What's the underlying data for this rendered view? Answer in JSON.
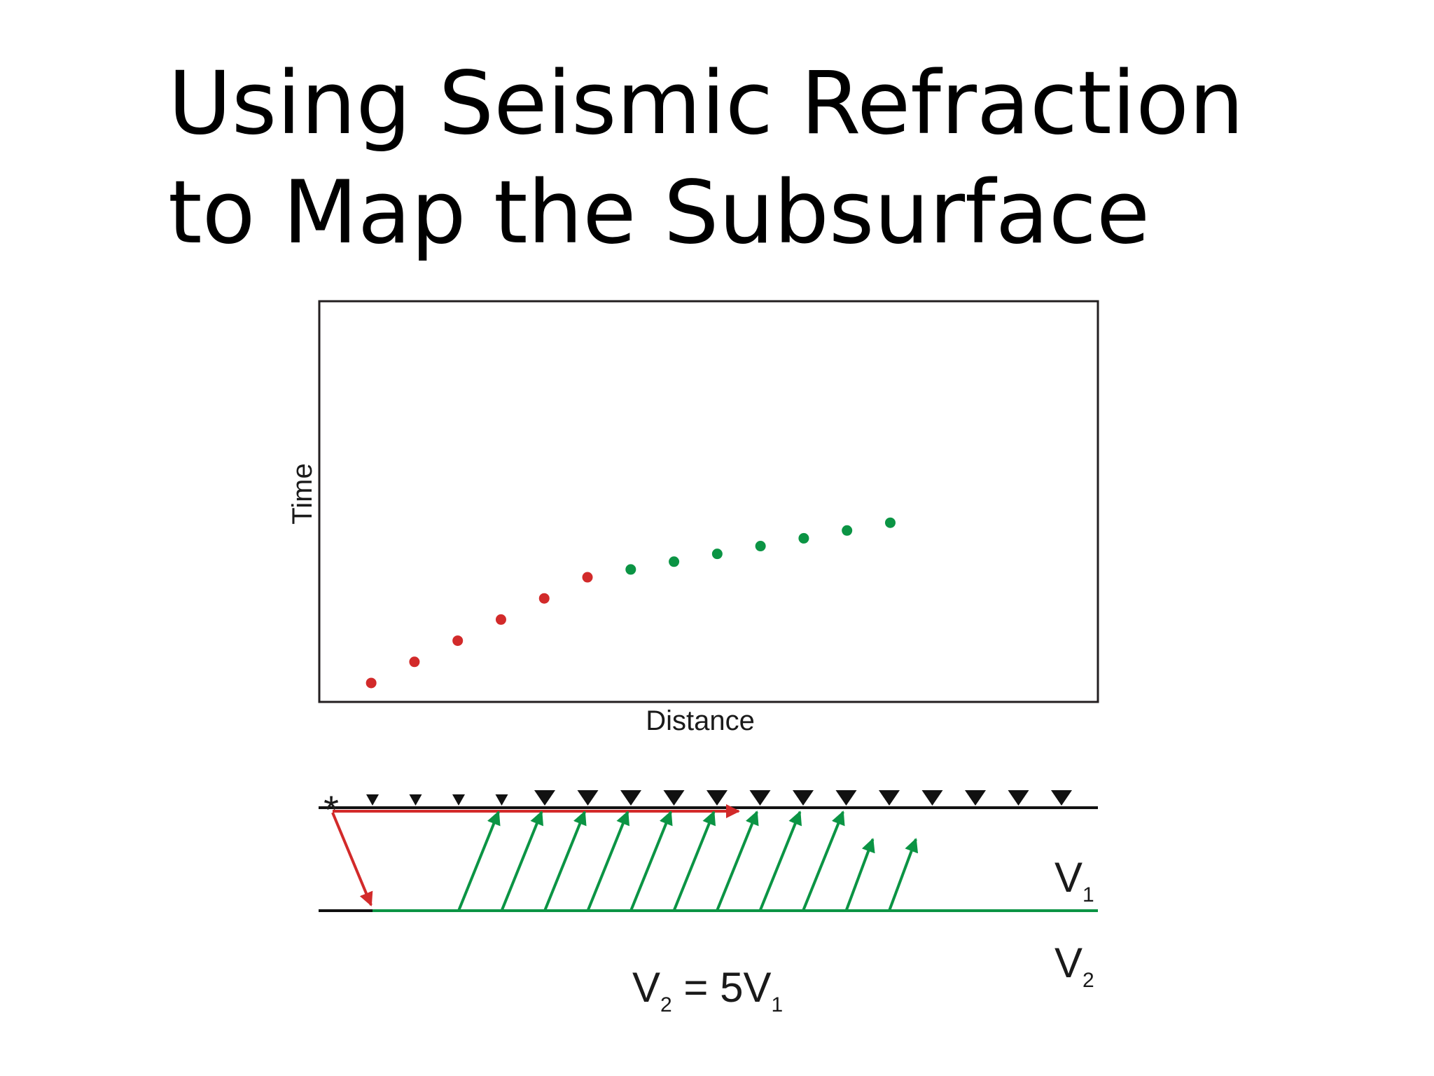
{
  "slide": {
    "title_line1": "Using Seismic Refraction",
    "title_line2": "to Map the Subsurface"
  },
  "colors": {
    "direct": "#d22a2a",
    "refracted": "#0b9444",
    "frame": "#231f20",
    "geophone": "#111111"
  },
  "chart_data": {
    "type": "scatter",
    "xlabel": "Distance",
    "ylabel": "Time",
    "xlim": [
      0,
      18
    ],
    "ylim": [
      0,
      18
    ],
    "grid": false,
    "legend": "none",
    "series": [
      {
        "color": "#d22a2a",
        "points": [
          [
            1.2,
            0.85
          ],
          [
            2.2,
            1.8
          ],
          [
            3.2,
            2.75
          ],
          [
            4.2,
            3.7
          ],
          [
            5.2,
            4.65
          ],
          [
            6.2,
            5.6
          ]
        ]
      },
      {
        "color": "#0b9444",
        "points": [
          [
            7.2,
            5.95
          ],
          [
            8.2,
            6.3
          ],
          [
            9.2,
            6.65
          ],
          [
            10.2,
            7.0
          ],
          [
            11.2,
            7.35
          ],
          [
            12.2,
            7.7
          ],
          [
            13.2,
            8.05
          ]
        ]
      }
    ]
  },
  "diagram": {
    "source_symbol": "*",
    "geophone_count": 17,
    "layer1_label": {
      "v": "V",
      "sub": "1"
    },
    "layer2_label": {
      "v": "V",
      "sub": "2"
    },
    "equation": {
      "v2": "V",
      "v2_sub": "2",
      "eq": " = 5V",
      "v1_sub": "1"
    }
  }
}
